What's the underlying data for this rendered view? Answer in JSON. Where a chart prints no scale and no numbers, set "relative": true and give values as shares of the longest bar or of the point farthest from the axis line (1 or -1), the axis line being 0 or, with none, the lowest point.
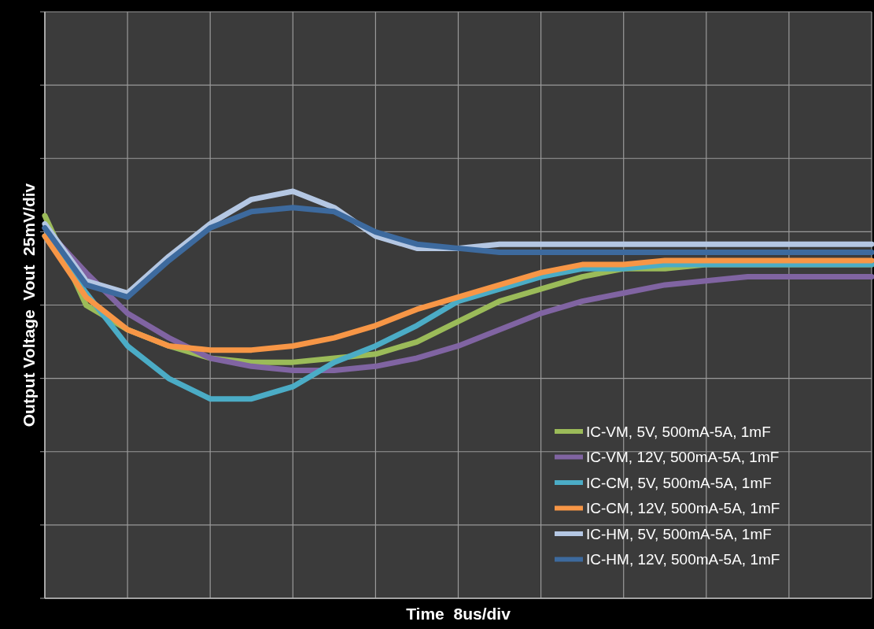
{
  "chart_data": {
    "type": "line",
    "relative": true,
    "xlabel": "Time  8us/div",
    "ylabel": "Output Voltage  Vout  25mV/div",
    "grid": true,
    "legend": "bottom right",
    "line_style": "solid",
    "marker": "none",
    "categories": [
      null,
      null,
      null,
      null,
      null,
      null,
      null,
      null,
      null,
      null,
      null,
      null,
      null,
      null,
      null,
      null,
      null,
      null,
      null,
      null,
      null
    ],
    "series": [
      {
        "name": "IC-VM, 5V, 500mA-5A, 1mF",
        "color": "#9bbb59",
        "values": [
          0.94,
          0.72,
          0.66,
          0.62,
          0.59,
          0.58,
          0.58,
          0.59,
          0.6,
          0.63,
          0.68,
          0.73,
          0.76,
          0.79,
          0.81,
          0.81,
          0.82,
          0.82,
          0.82,
          0.82,
          0.82
        ]
      },
      {
        "name": "IC-VM, 12V, 500mA-5A, 1mF",
        "color": "#8064a2",
        "values": [
          0.91,
          0.8,
          0.7,
          0.64,
          0.59,
          0.57,
          0.56,
          0.56,
          0.57,
          0.59,
          0.62,
          0.66,
          0.7,
          0.73,
          0.75,
          0.77,
          0.78,
          0.79,
          0.79,
          0.79,
          0.79
        ]
      },
      {
        "name": "IC-CM, 5V, 500mA-5A, 1mF",
        "color": "#4bacc6",
        "values": [
          0.89,
          0.75,
          0.62,
          0.54,
          0.49,
          0.49,
          0.52,
          0.58,
          0.62,
          0.67,
          0.73,
          0.76,
          0.79,
          0.81,
          0.81,
          0.82,
          0.82,
          0.82,
          0.82,
          0.82,
          0.82
        ]
      },
      {
        "name": "IC-CM, 12V, 500mA-5A, 1mF",
        "color": "#f79646",
        "values": [
          0.89,
          0.74,
          0.66,
          0.62,
          0.61,
          0.61,
          0.62,
          0.64,
          0.67,
          0.71,
          0.74,
          0.77,
          0.8,
          0.82,
          0.82,
          0.83,
          0.83,
          0.83,
          0.83,
          0.83,
          0.83
        ]
      },
      {
        "name": "IC-HM, 5V, 500mA-5A, 1mF",
        "color": "#b4c7e3",
        "values": [
          0.92,
          0.78,
          0.75,
          0.84,
          0.92,
          0.98,
          1,
          0.96,
          0.89,
          0.86,
          0.86,
          0.87,
          0.87,
          0.87,
          0.87,
          0.87,
          0.87,
          0.87,
          0.87,
          0.87,
          0.87
        ]
      },
      {
        "name": "IC-HM, 12V, 500mA-5A, 1mF",
        "color": "#3d6a9e",
        "values": [
          0.91,
          0.77,
          0.74,
          0.83,
          0.91,
          0.95,
          0.96,
          0.95,
          0.9,
          0.87,
          0.86,
          0.85,
          0.85,
          0.85,
          0.85,
          0.85,
          0.85,
          0.85,
          0.85,
          0.85,
          0.85
        ]
      }
    ]
  }
}
